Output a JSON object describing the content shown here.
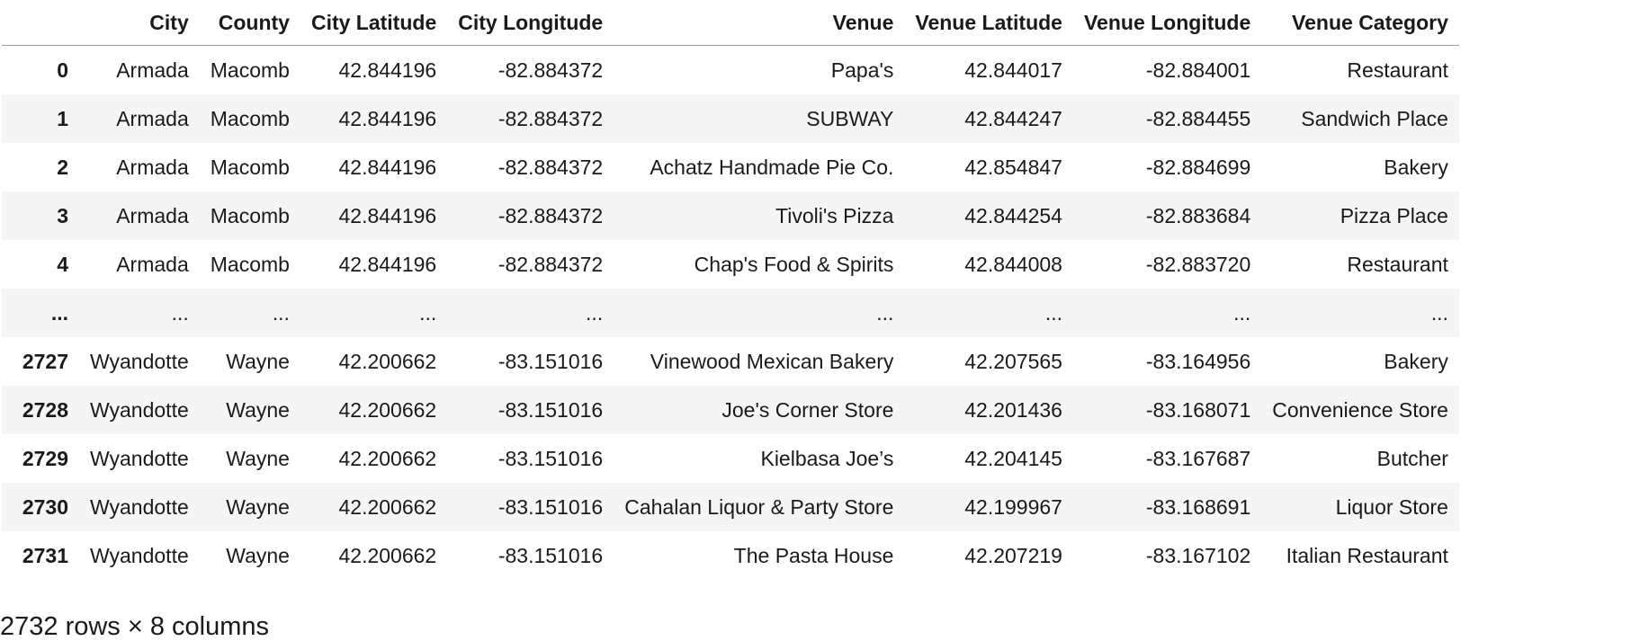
{
  "table": {
    "columns": [
      "",
      "City",
      "County",
      "City Latitude",
      "City Longitude",
      "Venue",
      "Venue Latitude",
      "Venue Longitude",
      "Venue Category"
    ],
    "rows": [
      [
        "0",
        "Armada",
        "Macomb",
        "42.844196",
        "-82.884372",
        "Papa's",
        "42.844017",
        "-82.884001",
        "Restaurant"
      ],
      [
        "1",
        "Armada",
        "Macomb",
        "42.844196",
        "-82.884372",
        "SUBWAY",
        "42.844247",
        "-82.884455",
        "Sandwich Place"
      ],
      [
        "2",
        "Armada",
        "Macomb",
        "42.844196",
        "-82.884372",
        "Achatz Handmade Pie Co.",
        "42.854847",
        "-82.884699",
        "Bakery"
      ],
      [
        "3",
        "Armada",
        "Macomb",
        "42.844196",
        "-82.884372",
        "Tivoli's Pizza",
        "42.844254",
        "-82.883684",
        "Pizza Place"
      ],
      [
        "4",
        "Armada",
        "Macomb",
        "42.844196",
        "-82.884372",
        "Chap's Food & Spirits",
        "42.844008",
        "-82.883720",
        "Restaurant"
      ],
      [
        "...",
        "...",
        "...",
        "...",
        "...",
        "...",
        "...",
        "...",
        "..."
      ],
      [
        "2727",
        "Wyandotte",
        "Wayne",
        "42.200662",
        "-83.151016",
        "Vinewood Mexican Bakery",
        "42.207565",
        "-83.164956",
        "Bakery"
      ],
      [
        "2728",
        "Wyandotte",
        "Wayne",
        "42.200662",
        "-83.151016",
        "Joe's Corner Store",
        "42.201436",
        "-83.168071",
        "Convenience Store"
      ],
      [
        "2729",
        "Wyandotte",
        "Wayne",
        "42.200662",
        "-83.151016",
        "Kielbasa Joe’s",
        "42.204145",
        "-83.167687",
        "Butcher"
      ],
      [
        "2730",
        "Wyandotte",
        "Wayne",
        "42.200662",
        "-83.151016",
        "Cahalan Liquor & Party Store",
        "42.199967",
        "-83.168691",
        "Liquor Store"
      ],
      [
        "2731",
        "Wyandotte",
        "Wayne",
        "42.200662",
        "-83.151016",
        "The Pasta House",
        "42.207219",
        "-83.167102",
        "Italian Restaurant"
      ]
    ]
  },
  "summary": "2732 rows × 8 columns"
}
